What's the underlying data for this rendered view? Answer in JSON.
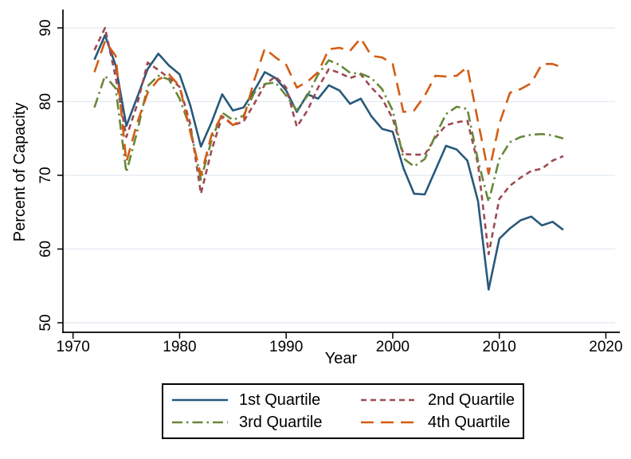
{
  "chart_data": {
    "type": "line",
    "title": "",
    "xlabel": "Year",
    "ylabel": "Percent of Capacity",
    "x_range": [
      1970,
      2020
    ],
    "y_range": [
      50,
      90
    ],
    "x_ticks": [
      1970,
      1980,
      1990,
      2000,
      2010,
      2020
    ],
    "y_ticks": [
      50,
      60,
      70,
      80,
      90
    ],
    "grid": "horizontal-light",
    "gridline_color": "#e2ebf2",
    "axis_color": "#000000",
    "legend_position": "bottom-box",
    "x": [
      1972,
      1973,
      1974,
      1975,
      1976,
      1977,
      1978,
      1979,
      1980,
      1981,
      1982,
      1983,
      1984,
      1985,
      1986,
      1987,
      1988,
      1989,
      1990,
      1991,
      1992,
      1993,
      1994,
      1995,
      1996,
      1997,
      1998,
      1999,
      2000,
      2001,
      2002,
      2003,
      2004,
      2005,
      2006,
      2007,
      2008,
      2009,
      2010,
      2011,
      2012,
      2013,
      2014,
      2015,
      2016
    ],
    "series": [
      {
        "name": "1st Quartile",
        "color": "#27597b",
        "dash": "solid",
        "values": [
          85.7,
          89.0,
          84.9,
          76.7,
          80.5,
          84.4,
          86.5,
          84.9,
          83.7,
          79.5,
          73.9,
          77.2,
          81.0,
          78.8,
          79.2,
          81.5,
          84.0,
          83.2,
          81.5,
          78.6,
          81.0,
          80.4,
          82.2,
          81.5,
          79.7,
          80.4,
          78.0,
          76.3,
          75.9,
          71.0,
          67.5,
          67.4,
          70.7,
          74.0,
          73.5,
          72.0,
          66.5,
          54.5,
          61.4,
          62.8,
          63.9,
          64.4,
          63.2,
          63.7,
          62.6
        ]
      },
      {
        "name": "2nd Quartile",
        "color": "#9d4a52",
        "dash": "dash",
        "values": [
          87.0,
          90.0,
          83.3,
          75.2,
          79.5,
          85.3,
          84.3,
          83.2,
          82.0,
          77.0,
          67.5,
          73.4,
          78.0,
          76.8,
          77.3,
          79.7,
          82.3,
          83.4,
          81.9,
          76.6,
          78.8,
          81.9,
          84.4,
          83.9,
          83.2,
          83.7,
          81.9,
          80.4,
          77.7,
          72.9,
          72.8,
          72.8,
          75.1,
          76.8,
          77.2,
          77.4,
          71.5,
          59.3,
          66.8,
          68.6,
          69.7,
          70.6,
          70.9,
          72.0,
          72.6
        ]
      },
      {
        "name": "3rd Quartile",
        "color": "#67883a",
        "dash": "dashdot",
        "values": [
          79.2,
          83.5,
          81.8,
          70.4,
          75.8,
          82.1,
          83.5,
          83.0,
          80.4,
          76.4,
          69.4,
          74.8,
          78.5,
          77.5,
          78.1,
          81.2,
          82.4,
          82.6,
          80.8,
          78.8,
          80.8,
          83.7,
          85.6,
          85.0,
          83.9,
          83.8,
          83.2,
          81.7,
          78.8,
          72.3,
          71.2,
          72.2,
          75.4,
          78.3,
          79.3,
          79.0,
          72.0,
          66.4,
          72.2,
          74.5,
          75.2,
          75.5,
          75.6,
          75.4,
          75.0
        ]
      },
      {
        "name": "4th Quartile",
        "color": "#d45c12",
        "dash": "longdash",
        "values": [
          84.0,
          88.2,
          86.2,
          71.8,
          77.0,
          81.2,
          83.0,
          83.7,
          82.1,
          75.9,
          70.0,
          75.5,
          78.2,
          76.8,
          77.7,
          82.9,
          87.2,
          86.0,
          85.0,
          81.9,
          82.7,
          84.0,
          87.1,
          87.3,
          86.9,
          88.6,
          86.2,
          86.0,
          85.1,
          78.6,
          78.8,
          80.8,
          83.5,
          83.4,
          83.5,
          84.7,
          77.3,
          70.2,
          77.0,
          81.2,
          81.7,
          82.5,
          85.1,
          85.1,
          84.6
        ]
      }
    ]
  }
}
